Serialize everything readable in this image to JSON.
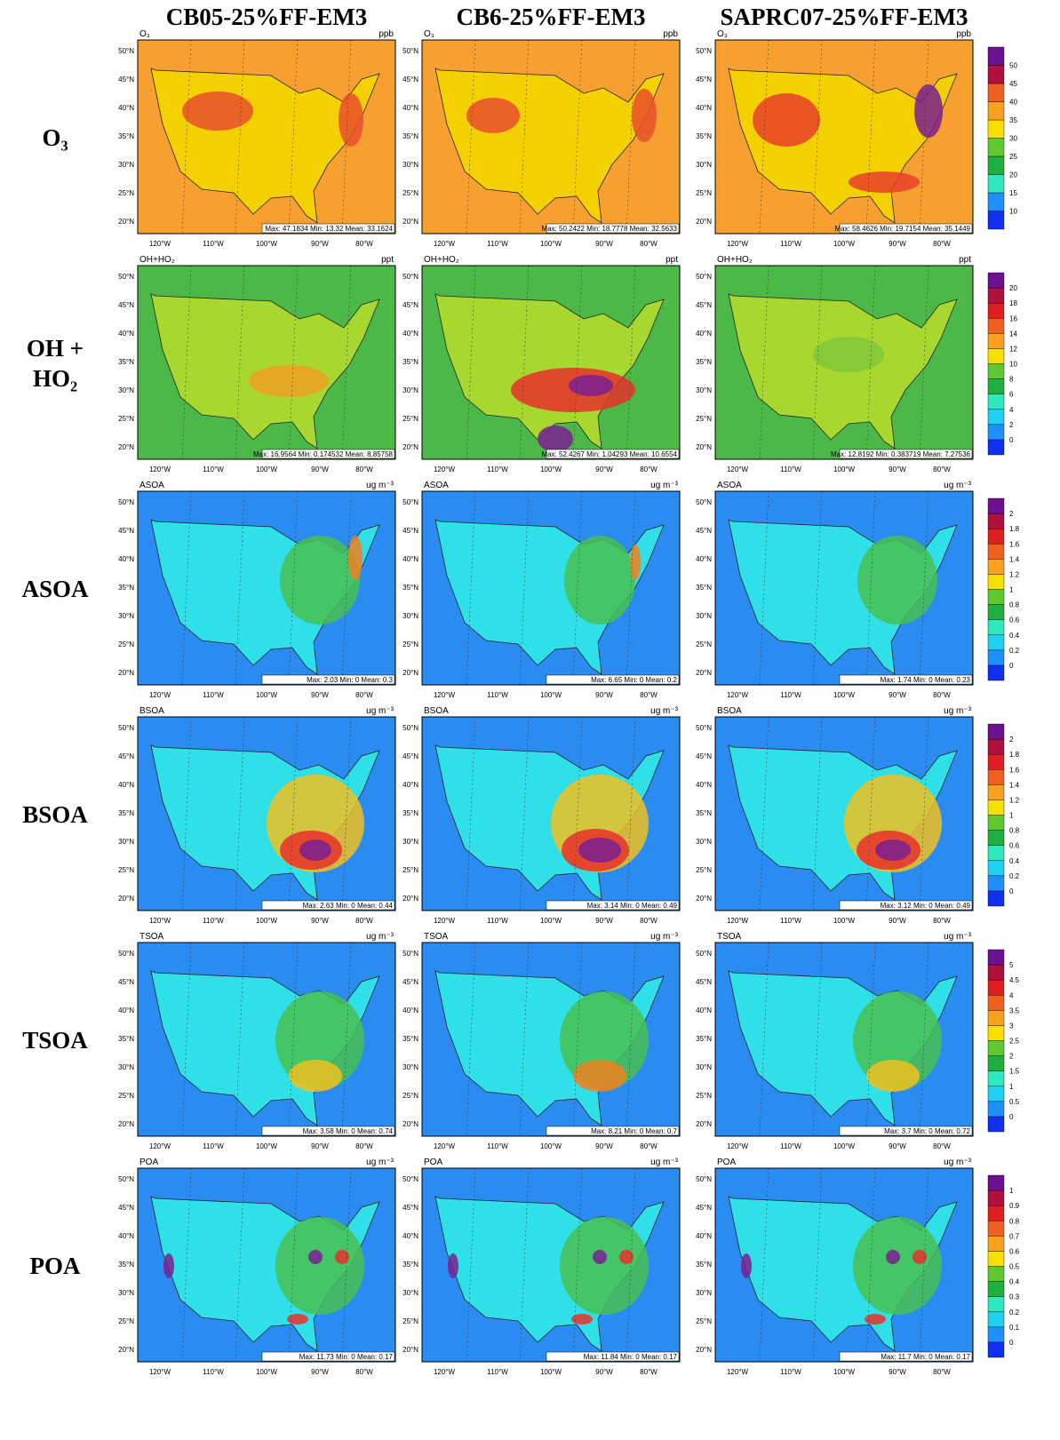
{
  "columns": [
    "CB05-25%FF-EM3",
    "CB6-25%FF-EM3",
    "SAPRC07-25%FF-EM3"
  ],
  "lat_ticks": [
    "50°N",
    "45°N",
    "40°N",
    "35°N",
    "30°N",
    "25°N",
    "20°N"
  ],
  "lon_ticks": [
    "120°W",
    "110°W",
    "100°W",
    "90°W",
    "80°W"
  ],
  "rows": [
    {
      "label": [
        "O₃"
      ],
      "variable": "O₃",
      "unit": "ppb",
      "colorbar": [
        10,
        15,
        20,
        25,
        30,
        35,
        40,
        45,
        50
      ],
      "stats": [
        "Max: 47.1834 Min: 13.32 Mean: 33.1624",
        "Max: 50.2422 Min: 18.7778 Mean: 32.5633",
        "Max: 58.4626 Min: 19.7154 Mean: 35.1449"
      ]
    },
    {
      "label": [
        "OH +",
        "HO₂"
      ],
      "variable": "OH+HO₂",
      "unit": "ppt",
      "colorbar": [
        0,
        2,
        4,
        6,
        8,
        10,
        12,
        14,
        16,
        18,
        20
      ],
      "stats": [
        "Max: 16.9564 Min: 0.174532 Mean: 8.85758",
        "Max: 52.4267 Min: 1.04293 Mean: 10.6554",
        "Max: 12.8192 Min: 0.383719 Mean: 7.27536"
      ]
    },
    {
      "label": [
        "ASOA"
      ],
      "variable": "ASOA",
      "unit": "ug m⁻³",
      "colorbar": [
        0,
        0.2,
        0.4,
        0.6,
        0.8,
        1,
        1.2,
        1.4,
        1.6,
        1.8,
        2
      ],
      "stats": [
        "Max: 2.03 Min: 0 Mean: 0.3",
        "Max: 6.65 Min: 0 Mean: 0.2",
        "Max: 1.74 Min: 0 Mean: 0.23"
      ]
    },
    {
      "label": [
        "BSOA"
      ],
      "variable": "BSOA",
      "unit": "ug m⁻³",
      "colorbar": [
        0,
        0.2,
        0.4,
        0.6,
        0.8,
        1,
        1.2,
        1.4,
        1.6,
        1.8,
        2
      ],
      "stats": [
        "Max: 2.63 Min: 0 Mean: 0.44",
        "Max: 3.14 Min: 0 Mean: 0.49",
        "Max: 3.12 Min: 0 Mean: 0.49"
      ]
    },
    {
      "label": [
        "TSOA"
      ],
      "variable": "TSOA",
      "unit": "ug m⁻³",
      "colorbar": [
        0,
        0.5,
        1,
        1.5,
        2,
        2.5,
        3,
        3.5,
        4,
        4.5,
        5
      ],
      "stats": [
        "Max: 3.58 Min: 0 Mean: 0.74",
        "Max: 8.21 Min: 0 Mean: 0.7",
        "Max: 3.7 Min: 0 Mean: 0.72"
      ]
    },
    {
      "label": [
        "POA"
      ],
      "variable": "POA",
      "unit": "ug m⁻³",
      "colorbar": [
        0,
        0.1,
        0.2,
        0.3,
        0.4,
        0.5,
        0.6,
        0.7,
        0.8,
        0.9,
        1
      ],
      "stats": [
        "Max: 11.73 Min: 0 Mean: 0.17",
        "Max: 11.84 Min: 0 Mean: 0.17",
        "Max: 11.7 Min: 0 Mean: 0.17"
      ]
    }
  ]
}
